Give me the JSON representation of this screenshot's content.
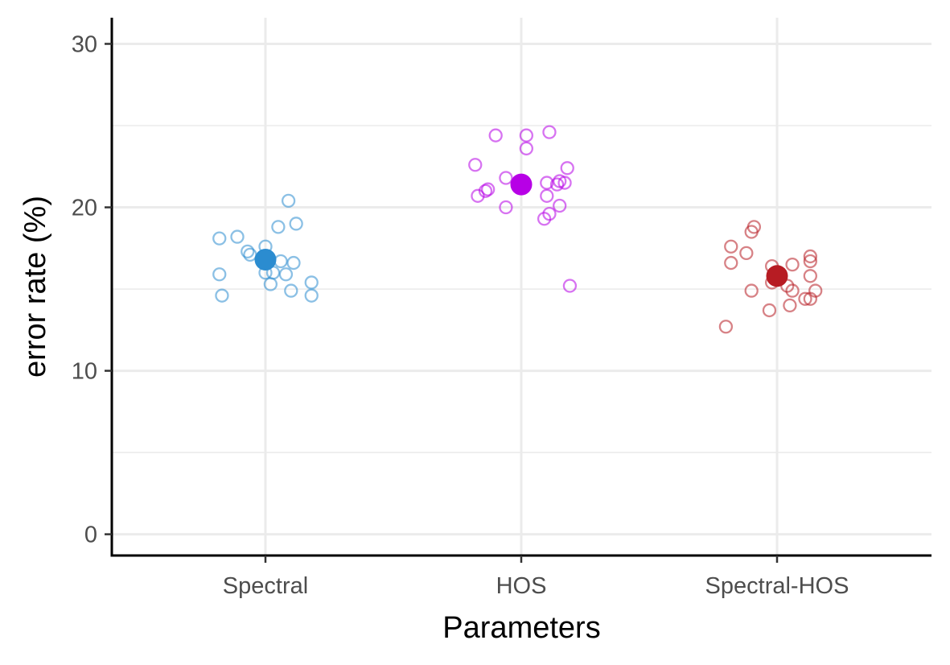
{
  "chart_data": {
    "type": "scatter",
    "xlabel": "Parameters",
    "ylabel": "error rate (%)",
    "categories": [
      "Spectral",
      "HOS",
      "Spectral-HOS"
    ],
    "ylim": [
      -1.3,
      31.6
    ],
    "yticks": [
      0,
      10,
      20,
      30
    ],
    "grid": true,
    "colors": {
      "Spectral": "#2b8cd0",
      "HOS": "#b700e6",
      "Spectral-HOS": "#b71c23"
    },
    "groups": [
      {
        "category": "Spectral",
        "mean": 16.8,
        "points": [
          {
            "x": -0.18,
            "y": 18.1
          },
          {
            "x": -0.11,
            "y": 18.2
          },
          {
            "x": -0.07,
            "y": 17.3
          },
          {
            "x": -0.06,
            "y": 17.1
          },
          {
            "x": 0.0,
            "y": 17.6
          },
          {
            "x": 0.05,
            "y": 18.8
          },
          {
            "x": 0.09,
            "y": 20.4
          },
          {
            "x": 0.12,
            "y": 19.0
          },
          {
            "x": -0.18,
            "y": 15.9
          },
          {
            "x": -0.17,
            "y": 14.6
          },
          {
            "x": 0.0,
            "y": 16.0
          },
          {
            "x": 0.03,
            "y": 16.0
          },
          {
            "x": 0.06,
            "y": 16.7
          },
          {
            "x": 0.08,
            "y": 15.9
          },
          {
            "x": 0.11,
            "y": 16.6
          },
          {
            "x": 0.02,
            "y": 15.3
          },
          {
            "x": 0.1,
            "y": 14.9
          },
          {
            "x": 0.18,
            "y": 15.4
          },
          {
            "x": 0.18,
            "y": 14.6
          }
        ]
      },
      {
        "category": "HOS",
        "mean": 21.4,
        "points": [
          {
            "x": -0.18,
            "y": 22.6
          },
          {
            "x": -0.1,
            "y": 24.4
          },
          {
            "x": 0.02,
            "y": 24.4
          },
          {
            "x": 0.02,
            "y": 23.6
          },
          {
            "x": 0.11,
            "y": 24.6
          },
          {
            "x": 0.18,
            "y": 22.4
          },
          {
            "x": -0.06,
            "y": 21.8
          },
          {
            "x": -0.13,
            "y": 21.1
          },
          {
            "x": -0.14,
            "y": 21.0
          },
          {
            "x": -0.17,
            "y": 20.7
          },
          {
            "x": -0.06,
            "y": 20.0
          },
          {
            "x": 0.1,
            "y": 21.5
          },
          {
            "x": 0.15,
            "y": 21.6
          },
          {
            "x": 0.17,
            "y": 21.5
          },
          {
            "x": 0.14,
            "y": 21.4
          },
          {
            "x": 0.1,
            "y": 20.7
          },
          {
            "x": 0.15,
            "y": 20.1
          },
          {
            "x": 0.11,
            "y": 19.6
          },
          {
            "x": 0.09,
            "y": 19.3
          },
          {
            "x": 0.19,
            "y": 15.2
          }
        ]
      },
      {
        "category": "Spectral-HOS",
        "mean": 15.8,
        "points": [
          {
            "x": -0.09,
            "y": 18.8
          },
          {
            "x": -0.1,
            "y": 18.5
          },
          {
            "x": -0.18,
            "y": 17.6
          },
          {
            "x": -0.12,
            "y": 17.2
          },
          {
            "x": -0.18,
            "y": 16.6
          },
          {
            "x": -0.02,
            "y": 16.4
          },
          {
            "x": 0.06,
            "y": 16.5
          },
          {
            "x": 0.13,
            "y": 17.0
          },
          {
            "x": 0.13,
            "y": 16.7
          },
          {
            "x": 0.13,
            "y": 15.8
          },
          {
            "x": -0.02,
            "y": 15.4
          },
          {
            "x": 0.04,
            "y": 15.2
          },
          {
            "x": 0.06,
            "y": 14.9
          },
          {
            "x": -0.1,
            "y": 14.9
          },
          {
            "x": 0.15,
            "y": 14.9
          },
          {
            "x": 0.11,
            "y": 14.4
          },
          {
            "x": 0.13,
            "y": 14.4
          },
          {
            "x": 0.05,
            "y": 14.0
          },
          {
            "x": -0.03,
            "y": 13.7
          },
          {
            "x": -0.2,
            "y": 12.7
          }
        ]
      }
    ]
  }
}
